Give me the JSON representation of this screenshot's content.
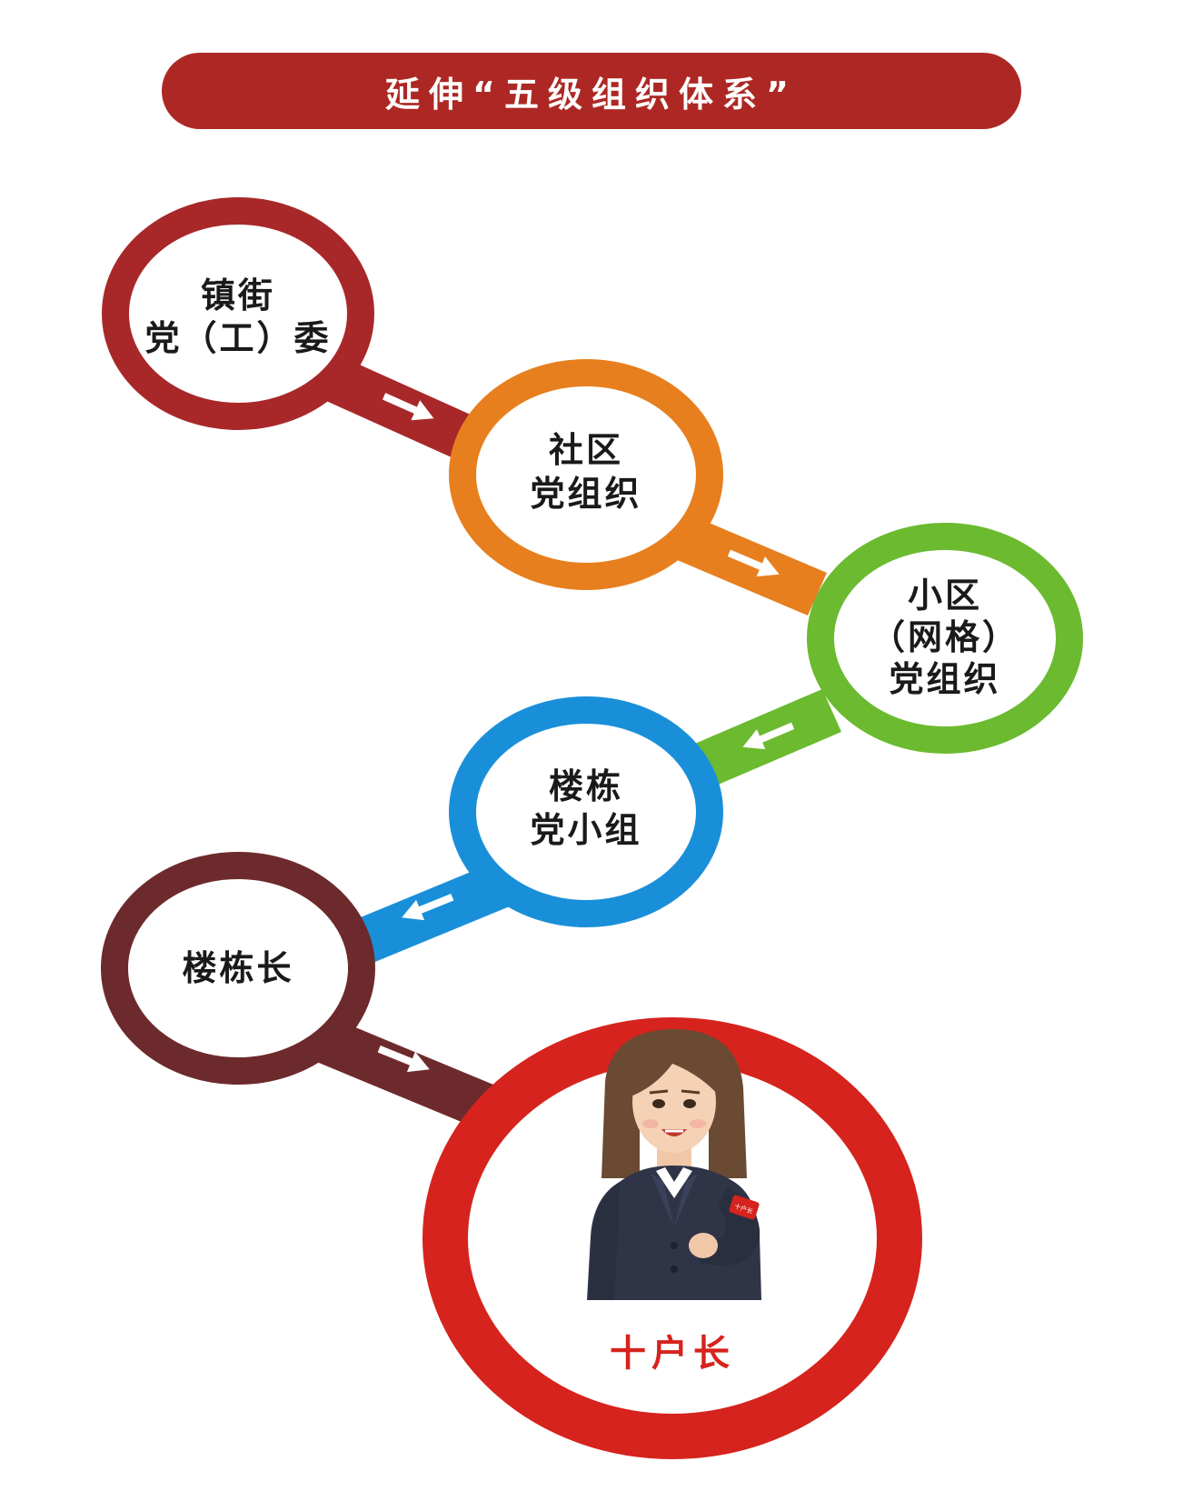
{
  "title": "延伸“五级组织体系”",
  "nodes": [
    {
      "id": "town",
      "lines": [
        "镇街",
        "党（工）委"
      ],
      "color": "#a8282a"
    },
    {
      "id": "community",
      "lines": [
        "社区",
        "党组织"
      ],
      "color": "#e77f1e"
    },
    {
      "id": "neighborhood",
      "lines": [
        "小区",
        "（网格）",
        "党组织"
      ],
      "color": "#6bba2f"
    },
    {
      "id": "building-group",
      "lines": [
        "楼栋",
        "党小组"
      ],
      "color": "#1a8fd9"
    },
    {
      "id": "building-head",
      "lines": [
        "楼栋长"
      ],
      "color": "#6d2a2c"
    },
    {
      "id": "ten-household-head",
      "lines": [
        "十户长"
      ],
      "color": "#d6231d"
    }
  ],
  "armband_text": "十户长",
  "icons": [
    "arrow-right-icon",
    "arrow-left-icon",
    "woman-avatar-icon"
  ]
}
